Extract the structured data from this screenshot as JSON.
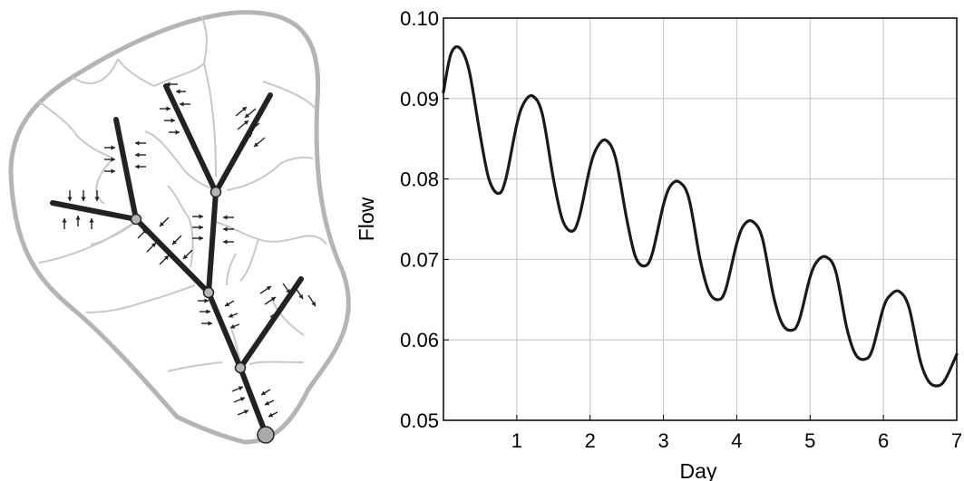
{
  "diagram": {
    "icons": {
      "confluence": "node-dot",
      "outlet": "outlet-dot",
      "lateral_inflow": "arrow"
    }
  },
  "chart_data": {
    "type": "line",
    "xlabel": "Day",
    "ylabel": "Flow",
    "xlim": [
      0,
      7
    ],
    "ylim": [
      0.05,
      0.1
    ],
    "xticks": [
      "1",
      "2",
      "3",
      "4",
      "5",
      "6",
      "7"
    ],
    "yticks": [
      "0.05",
      "0.06",
      "0.07",
      "0.08",
      "0.09",
      "0.10"
    ],
    "grid": true,
    "legend": "none",
    "line_color": "#1a1a1a",
    "series": [
      {
        "x": [
          0,
          0.1,
          0.22,
          0.35,
          0.5,
          0.62,
          0.75,
          0.85,
          1.0,
          1.1,
          1.22,
          1.35,
          1.5,
          1.62,
          1.75,
          1.85,
          2.0,
          2.1,
          2.22,
          2.35,
          2.5,
          2.62,
          2.75,
          2.85,
          3.0,
          3.1,
          3.22,
          3.35,
          3.5,
          3.62,
          3.75,
          3.85,
          4.0,
          4.1,
          4.22,
          4.35,
          4.5,
          4.62,
          4.75,
          4.85,
          5.0,
          5.1,
          5.22,
          5.35,
          5.5,
          5.62,
          5.75,
          5.85,
          6.0,
          6.1,
          6.22,
          6.35,
          6.5,
          6.62,
          6.75,
          6.85,
          7.0
        ],
        "values": [
          0.0908,
          0.0955,
          0.0963,
          0.0935,
          0.0855,
          0.08,
          0.0782,
          0.08,
          0.0868,
          0.0895,
          0.0903,
          0.088,
          0.08,
          0.075,
          0.0735,
          0.0752,
          0.0815,
          0.084,
          0.0848,
          0.0825,
          0.075,
          0.0703,
          0.0692,
          0.0708,
          0.0768,
          0.0792,
          0.0796,
          0.0775,
          0.07,
          0.066,
          0.065,
          0.0663,
          0.072,
          0.0743,
          0.0747,
          0.0726,
          0.0655,
          0.062,
          0.0612,
          0.0624,
          0.0678,
          0.0698,
          0.0703,
          0.0685,
          0.0615,
          0.0582,
          0.0576,
          0.0588,
          0.064,
          0.0656,
          0.066,
          0.064,
          0.0575,
          0.0548,
          0.0543,
          0.0552,
          0.0582
        ]
      }
    ]
  }
}
